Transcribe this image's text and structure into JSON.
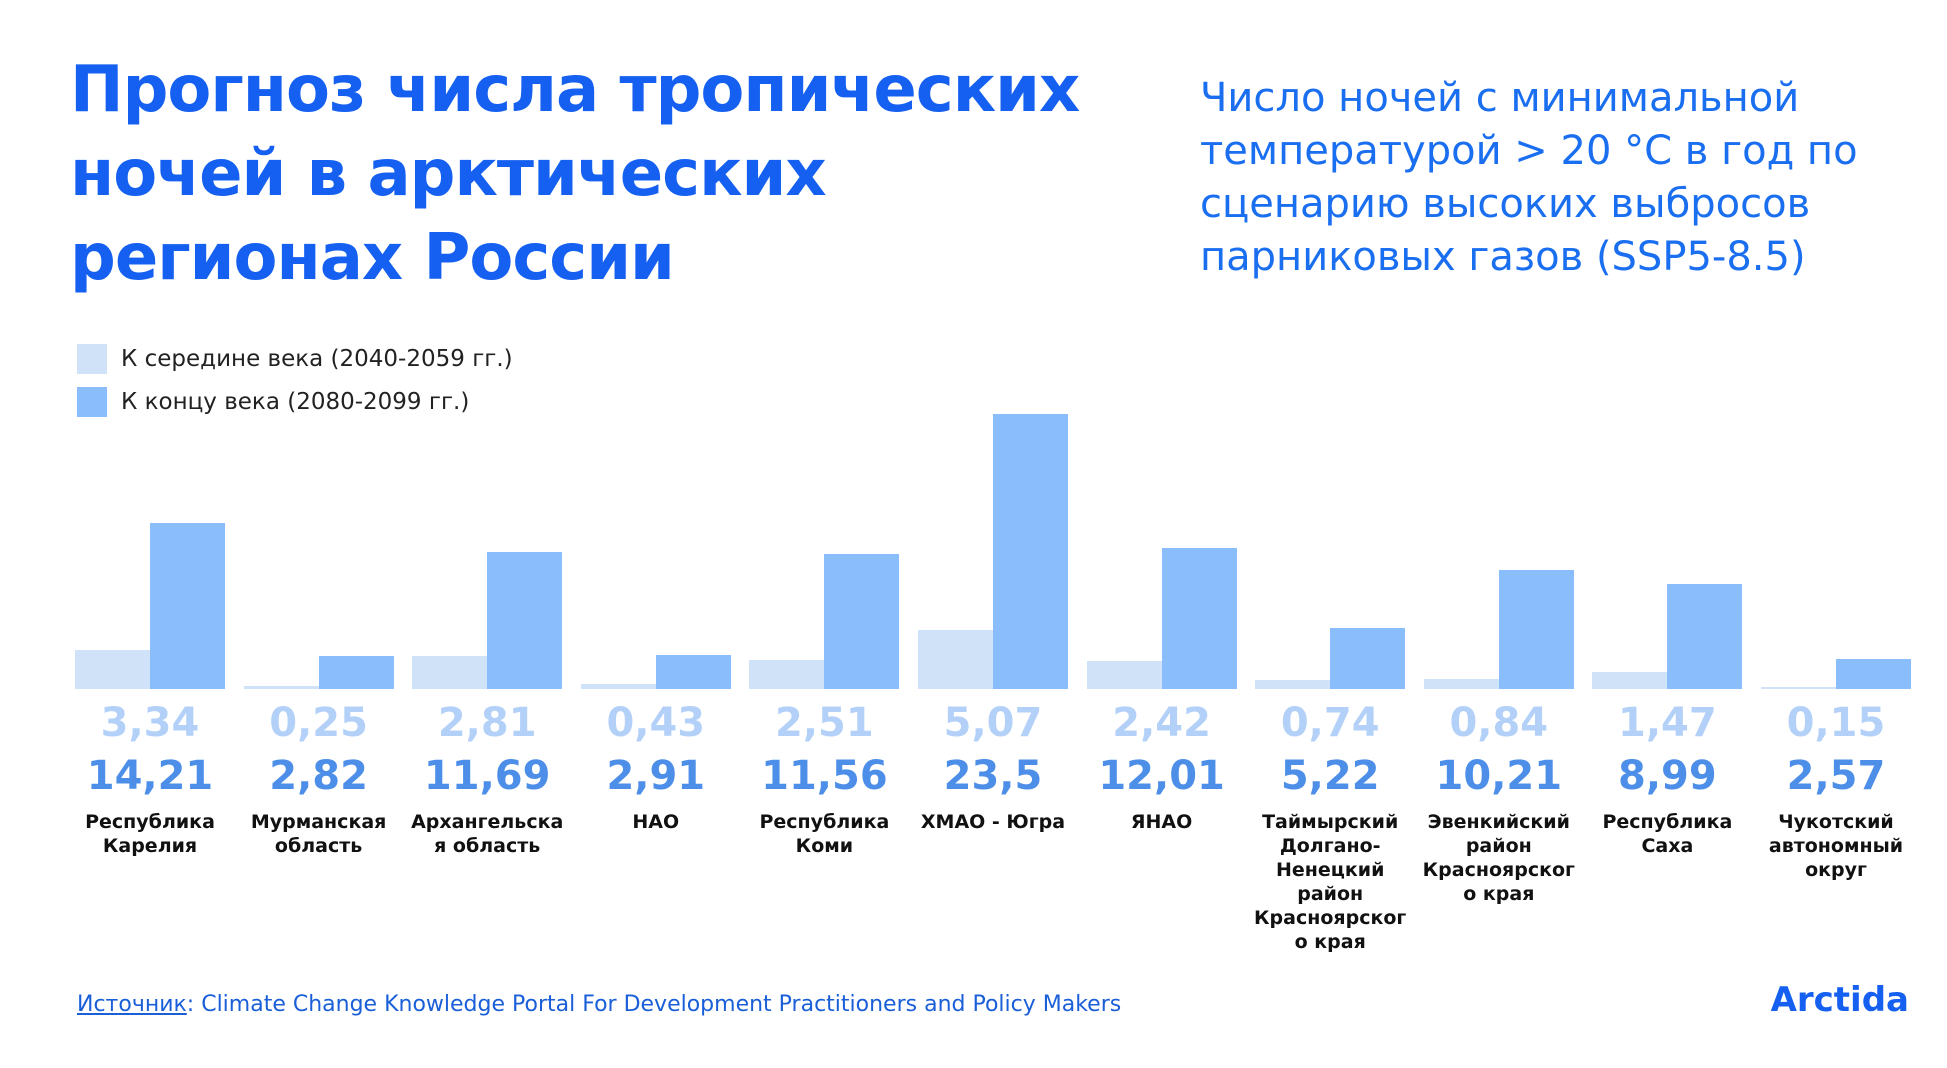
{
  "chart_data": {
    "type": "bar",
    "title": "Прогноз числа тропических ночей в арктических регионах России",
    "subtitle": "Число ночей с минимальной температурой > 20 °С в год по сценарию высоких выбросов парниковых газов (SSP5-8.5)",
    "categories": [
      "Республика Карелия",
      "Мурманская область",
      "Архангельская область",
      "НАО",
      "Республика Коми",
      "ХМАО - Югра",
      "ЯНАО",
      "Таймырский Долгано-Ненецкий район Красноярского края",
      "Эвенкийский район Красноярского края",
      "Республика Саха",
      "Чукотский автономный округ"
    ],
    "series": [
      {
        "name": "К середине века (2040-2059 гг.)",
        "color": "#cfe2f8",
        "label_color": "#b3d1f8",
        "values": [
          3.34,
          0.25,
          2.81,
          0.43,
          2.51,
          5.07,
          2.42,
          0.74,
          0.84,
          1.47,
          0.15
        ],
        "value_labels": [
          "3,34",
          "0,25",
          "2,81",
          "0,43",
          "2,51",
          "5,07",
          "2,42",
          "0,74",
          "0,84",
          "1,47",
          "0,15"
        ]
      },
      {
        "name": "К концу века (2080-2099 гг.)",
        "color": "#8abdfc",
        "label_color": "#4d8fe8",
        "values": [
          14.21,
          2.82,
          11.69,
          2.91,
          11.56,
          23.5,
          12.01,
          5.22,
          10.21,
          8.99,
          2.57
        ],
        "value_labels": [
          "14,21",
          "2,82",
          "11,69",
          "2,91",
          "11,56",
          "23,5",
          "12,01",
          "5,22",
          "10,21",
          "8,99",
          "2,57"
        ]
      }
    ],
    "source_label": "Источник",
    "source_text": ": Climate Change Knowledge Portal For Development Practitioners and Policy Makers",
    "logo": "Arctida"
  }
}
